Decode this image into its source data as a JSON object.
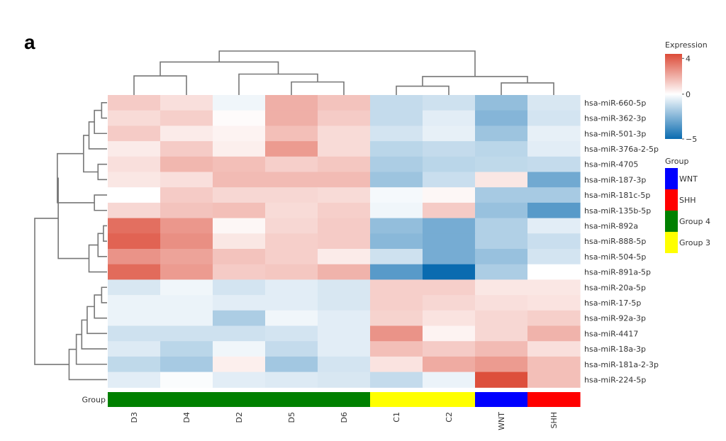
{
  "panel_label": "a",
  "colors": {
    "low": "#0a6bb0",
    "mid": "#ffffff",
    "high": "#dc4b38",
    "dendrogram": "#777777",
    "group": {
      "WNT": "#0000ff",
      "SHH": "#ff0000",
      "Group 4": "#008000",
      "Group 3": "#ffff00"
    }
  },
  "chart_data": {
    "type": "heatmap",
    "columns": [
      "D3",
      "D4",
      "D2",
      "D5",
      "D6",
      "C1",
      "C2",
      "WNT",
      "SHH"
    ],
    "rows": [
      "hsa-miR-660-5p",
      "hsa-miR-362-3p",
      "hsa-miR-501-3p",
      "hsa-miR-376a-2-5p",
      "hsa-miR-4705",
      "hsa-miR-187-3p",
      "hsa-miR-181c-5p",
      "hsa-miR-135b-5p",
      "hsa-miR-892a",
      "hsa-miR-888-5p",
      "hsa-miR-504-5p",
      "hsa-miR-891a-5p",
      "hsa-miR-20a-5p",
      "hsa-miR-17-5p",
      "hsa-miR-92a-3p",
      "hsa-miR-4417",
      "hsa-miR-18a-3p",
      "hsa-miR-181a-2-3p",
      "hsa-miR-224-5p"
    ],
    "values": [
      [
        1.3,
        0.8,
        -0.3,
        2.0,
        1.5,
        -1.2,
        -1.0,
        -2.2,
        -0.8
      ],
      [
        0.9,
        1.2,
        0.1,
        2.0,
        1.3,
        -1.2,
        -0.6,
        -2.5,
        -0.9
      ],
      [
        1.3,
        0.5,
        0.3,
        1.6,
        0.9,
        -0.9,
        -0.5,
        -2.0,
        -0.5
      ],
      [
        0.5,
        1.3,
        0.4,
        2.5,
        0.9,
        -1.4,
        -1.2,
        -1.4,
        -0.6
      ],
      [
        0.8,
        1.8,
        1.6,
        1.2,
        1.4,
        -1.7,
        -1.4,
        -1.3,
        -1.2
      ],
      [
        0.6,
        0.8,
        1.7,
        1.7,
        1.7,
        -2.0,
        -1.1,
        0.6,
        -2.9
      ],
      [
        0.0,
        1.3,
        1.0,
        1.0,
        0.9,
        -0.2,
        0.2,
        -1.8,
        -1.8
      ],
      [
        1.0,
        1.5,
        1.6,
        0.9,
        1.2,
        -0.3,
        1.3,
        -2.1,
        -3.4
      ],
      [
        3.6,
        2.6,
        0.2,
        1.0,
        1.3,
        -2.2,
        -2.8,
        -1.6,
        -0.6
      ],
      [
        3.9,
        2.8,
        0.6,
        1.2,
        1.3,
        -2.4,
        -2.8,
        -1.6,
        -1.1
      ],
      [
        2.7,
        2.3,
        1.5,
        1.2,
        0.5,
        -1.0,
        -2.8,
        -2.1,
        -0.9
      ],
      [
        3.7,
        2.5,
        1.3,
        1.4,
        1.9,
        -3.4,
        -5.0,
        -1.7,
        0.0
      ],
      [
        -0.8,
        -0.3,
        -0.9,
        -0.6,
        -0.8,
        1.2,
        1.2,
        0.6,
        0.6
      ],
      [
        -0.4,
        -0.4,
        -0.6,
        -0.6,
        -0.8,
        1.2,
        1.0,
        0.8,
        0.7
      ],
      [
        -0.4,
        -0.4,
        -1.7,
        -0.3,
        -0.6,
        1.1,
        0.7,
        1.0,
        1.2
      ],
      [
        -1.0,
        -1.0,
        -1.0,
        -0.9,
        -0.6,
        2.7,
        0.3,
        1.0,
        1.9
      ],
      [
        -0.7,
        -1.4,
        -0.3,
        -1.2,
        -0.6,
        1.6,
        1.3,
        1.7,
        0.8
      ],
      [
        -1.3,
        -1.8,
        0.4,
        -1.9,
        -0.9,
        0.7,
        2.1,
        2.5,
        1.6
      ],
      [
        -0.6,
        -0.1,
        -0.6,
        -0.7,
        -0.8,
        -1.2,
        -0.4,
        4.4,
        1.6
      ]
    ],
    "group_track": {
      "label": "Group",
      "assignments": [
        "Group 4",
        "Group 4",
        "Group 4",
        "Group 4",
        "Group 4",
        "Group 3",
        "Group 3",
        "WNT",
        "SHH"
      ]
    },
    "colorbar": {
      "title": "Expression",
      "range": [
        -5,
        4.5
      ],
      "ticks": [
        4,
        0,
        -5
      ]
    },
    "group_legend": {
      "title": "Group",
      "entries": [
        "WNT",
        "SHH",
        "Group 4",
        "Group 3"
      ]
    },
    "col_dendrogram": [
      [
        0,
        1,
        63,
        2
      ],
      [
        3,
        4,
        43,
        2
      ],
      [
        2,
        10,
        69,
        3
      ],
      [
        9,
        11,
        109,
        5
      ],
      [
        5,
        6,
        29,
        2
      ],
      [
        7,
        8,
        40,
        2
      ],
      [
        13,
        14,
        61,
        4
      ],
      [
        12,
        15,
        145,
        9
      ]
    ],
    "row_dendrogram": [
      [
        0,
        1,
        6,
        2
      ],
      [
        19,
        2,
        14,
        3
      ],
      [
        20,
        3,
        20,
        4
      ],
      [
        4,
        5,
        10,
        2
      ],
      [
        21,
        22,
        26,
        6
      ],
      [
        6,
        7,
        14,
        2
      ],
      [
        23,
        24,
        55,
        8
      ],
      [
        8,
        9,
        4,
        2
      ],
      [
        26,
        10,
        10,
        3
      ],
      [
        27,
        11,
        20,
        4
      ],
      [
        25,
        28,
        54,
        12
      ],
      [
        12,
        13,
        6,
        2
      ],
      [
        30,
        14,
        14,
        3
      ],
      [
        31,
        15,
        22,
        4
      ],
      [
        32,
        16,
        28,
        5
      ],
      [
        33,
        17,
        34,
        6
      ],
      [
        34,
        18,
        42,
        7
      ],
      [
        29,
        35,
        80,
        19
      ]
    ]
  }
}
